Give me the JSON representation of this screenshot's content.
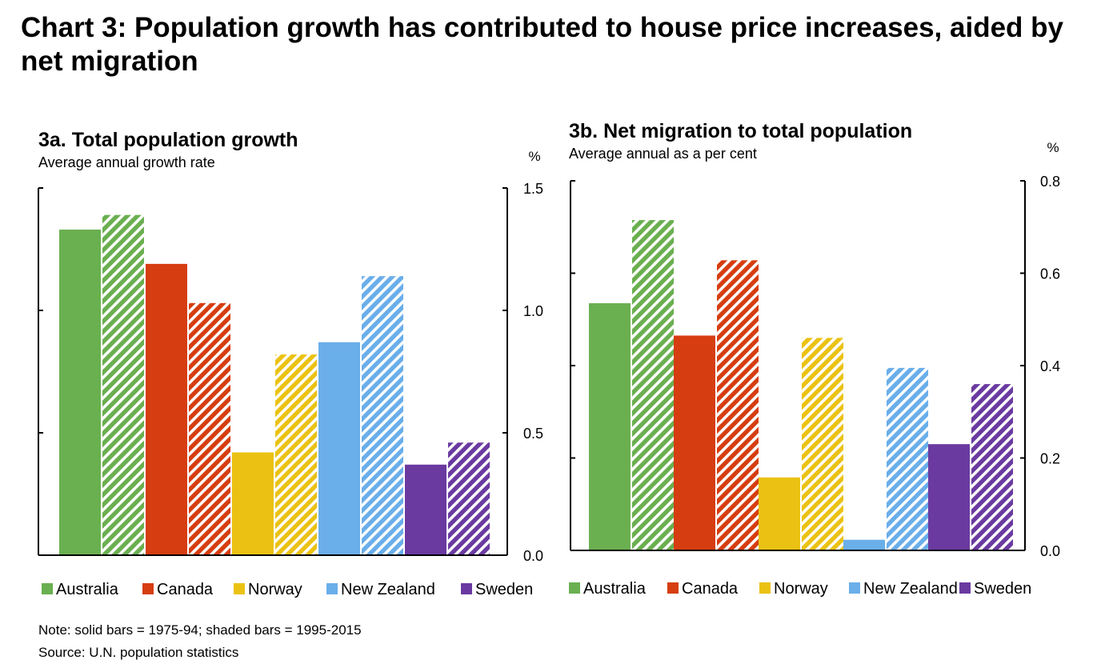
{
  "title": "Chart 3: Population growth has contributed to house price increases, aided by net migration",
  "note": "Note: solid bars = 1975-94; shaded bars = 1995-2015",
  "source": "Source: U.N. population statistics",
  "colors": {
    "Australia": "#6aaf50",
    "Canada": "#d63d10",
    "Norway": "#ebc213",
    "New Zealand": "#6aaeea",
    "Sweden": "#6a3aa0"
  },
  "chart_data": [
    {
      "type": "bar",
      "title": "3a. Total population growth",
      "subtitle": "Average annual growth rate",
      "unit": "%",
      "categories": [
        "Australia",
        "Canada",
        "Norway",
        "New Zealand",
        "Sweden"
      ],
      "series": [
        {
          "name": "1975-94",
          "style": "solid",
          "values": [
            1.33,
            1.19,
            0.42,
            0.87,
            0.37
          ]
        },
        {
          "name": "1995-2015",
          "style": "shaded",
          "values": [
            1.39,
            1.03,
            0.82,
            1.14,
            0.46
          ]
        }
      ],
      "ylim": [
        0,
        1.5
      ],
      "yticks": [
        "0.0",
        "0.5",
        "1.0",
        "1.5"
      ],
      "legend": [
        "Australia",
        "Canada",
        "Norway",
        "New Zealand",
        "Sweden"
      ],
      "legend_position": "bottom",
      "grid": false
    },
    {
      "type": "bar",
      "title": "3b. Net migration to total population",
      "subtitle": "Average annual as a per cent",
      "unit": "%",
      "categories": [
        "Australia",
        "Canada",
        "Norway",
        "New Zealand",
        "Sweden"
      ],
      "series": [
        {
          "name": "1975-94",
          "style": "solid",
          "values": [
            0.535,
            0.465,
            0.158,
            0.023,
            0.23
          ]
        },
        {
          "name": "1995-2015",
          "style": "shaded",
          "values": [
            0.715,
            0.628,
            0.46,
            0.395,
            0.36
          ]
        }
      ],
      "ylim": [
        0,
        0.8
      ],
      "yticks": [
        "0.0",
        "0.2",
        "0.4",
        "0.6",
        "0.8"
      ],
      "legend": [
        "Australia",
        "Canada",
        "Norway",
        "New Zealand",
        "Sweden"
      ],
      "legend_position": "bottom",
      "grid": false
    }
  ]
}
